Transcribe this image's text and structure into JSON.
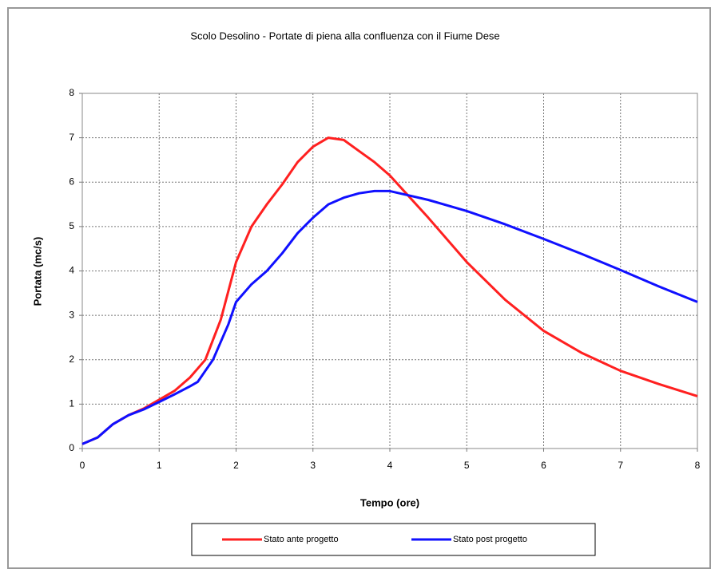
{
  "chart_data": {
    "type": "line",
    "title": "Scolo Desolino - Portate di piena alla confluenza con il Fiume Dese",
    "x_label": "Tempo (ore)",
    "y_label": "Portata (mc/s)",
    "xlim": [
      0,
      8
    ],
    "xticks": [
      0,
      1,
      2,
      3,
      4,
      5,
      6,
      7,
      8
    ],
    "ylim": [
      0,
      8
    ],
    "yticks": [
      0,
      1,
      2,
      3,
      4,
      5,
      6,
      7,
      8
    ],
    "grid": true,
    "legend": "bottom",
    "series": [
      {
        "name": "Stato ante progetto",
        "color": "#ff2020",
        "x": [
          0,
          0.2,
          0.4,
          0.6,
          0.8,
          1.0,
          1.2,
          1.4,
          1.6,
          1.8,
          2.0,
          2.2,
          2.4,
          2.6,
          2.8,
          3.0,
          3.2,
          3.4,
          3.6,
          3.8,
          4.0,
          4.5,
          5,
          5.5,
          6,
          6.5,
          7,
          7.5,
          8
        ],
        "values": [
          0.1,
          0.25,
          0.55,
          0.75,
          0.9,
          1.1,
          1.3,
          1.6,
          2.0,
          2.9,
          4.2,
          5.0,
          5.5,
          5.95,
          6.45,
          6.8,
          7.0,
          6.95,
          6.7,
          6.45,
          6.15,
          5.2,
          4.2,
          3.35,
          2.65,
          2.15,
          1.75,
          1.45,
          1.18
        ]
      },
      {
        "name": "Stato post progetto",
        "color": "#1010ff",
        "x": [
          0,
          0.2,
          0.4,
          0.6,
          0.8,
          1.0,
          1.2,
          1.4,
          1.5,
          1.7,
          1.9,
          2.0,
          2.2,
          2.4,
          2.6,
          2.8,
          3.0,
          3.2,
          3.4,
          3.6,
          3.8,
          4.0,
          4.5,
          5,
          5.5,
          6,
          6.5,
          7,
          7.5,
          8
        ],
        "values": [
          0.1,
          0.25,
          0.55,
          0.75,
          0.88,
          1.05,
          1.22,
          1.4,
          1.5,
          2.0,
          2.8,
          3.3,
          3.7,
          4.0,
          4.4,
          4.85,
          5.2,
          5.5,
          5.65,
          5.75,
          5.8,
          5.8,
          5.6,
          5.35,
          5.05,
          4.72,
          4.38,
          4.02,
          3.65,
          3.3
        ]
      }
    ]
  }
}
